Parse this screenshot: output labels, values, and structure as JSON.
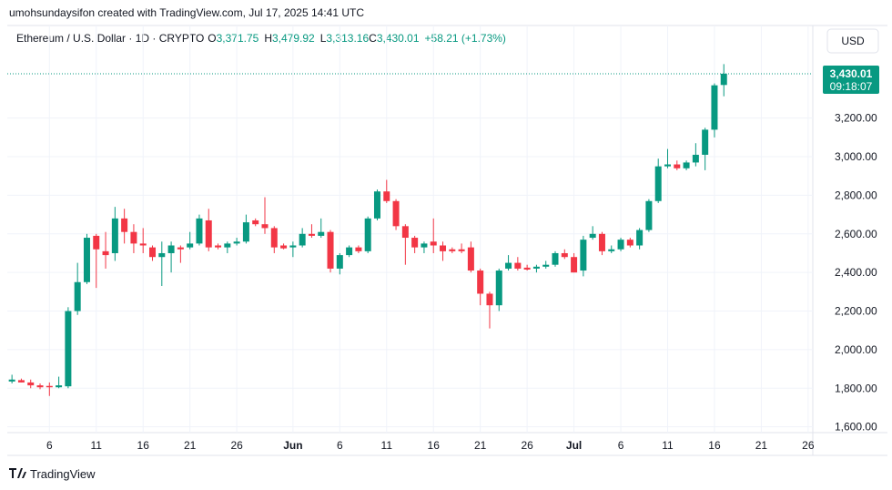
{
  "header": "umohsundaysifon created with TradingView.com, Jul 17, 2025 14:41 UTC",
  "footer": "TradingView",
  "currency_button": "USD",
  "legend": {
    "symbol": "Ethereum / U.S. Dollar · 1D · CRYPTO",
    "open_label": "O",
    "open": "3,371.75",
    "high_label": "H",
    "high": "3,479.92",
    "low_label": "L",
    "low": "3,313.16",
    "close_label": "C",
    "close": "3,430.01",
    "change": "+58.21 (+1.73%)"
  },
  "chart_data": {
    "type": "candlestick",
    "up_color": "#089981",
    "down_color": "#f23645",
    "grid": true,
    "last_price_label": "3,430.01",
    "countdown": "09:18:07",
    "xlim": [
      "2025-05-01T12:00",
      "2025-07-26T12:00"
    ],
    "xticks": [
      {
        "value": "2025-05-06",
        "label": "6"
      },
      {
        "value": "2025-05-11",
        "label": "11"
      },
      {
        "value": "2025-05-16",
        "label": "16"
      },
      {
        "value": "2025-05-21",
        "label": "21"
      },
      {
        "value": "2025-05-26",
        "label": "26"
      },
      {
        "value": "2025-06-01",
        "label": "Jun"
      },
      {
        "value": "2025-06-06",
        "label": "6"
      },
      {
        "value": "2025-06-11",
        "label": "11"
      },
      {
        "value": "2025-06-16",
        "label": "16"
      },
      {
        "value": "2025-06-21",
        "label": "21"
      },
      {
        "value": "2025-06-26",
        "label": "26"
      },
      {
        "value": "2025-07-01",
        "label": "Jul"
      },
      {
        "value": "2025-07-06",
        "label": "6"
      },
      {
        "value": "2025-07-11",
        "label": "11"
      },
      {
        "value": "2025-07-16",
        "label": "16"
      },
      {
        "value": "2025-07-21",
        "label": "21"
      },
      {
        "value": "2025-07-26",
        "label": "26"
      }
    ],
    "ylim": [
      1570,
      3680
    ],
    "yticks": [
      {
        "value": 1600,
        "label": "1,600.00"
      },
      {
        "value": 1800,
        "label": "1,800.00"
      },
      {
        "value": 2000,
        "label": "2,000.00"
      },
      {
        "value": 2200,
        "label": "2,200.00"
      },
      {
        "value": 2400,
        "label": "2,400.00"
      },
      {
        "value": 2600,
        "label": "2,600.00"
      },
      {
        "value": 2800,
        "label": "2,800.00"
      },
      {
        "value": 3000,
        "label": "3,000.00"
      },
      {
        "value": 3200,
        "label": "3,200.00"
      }
    ],
    "x": [
      "2025-05-02",
      "2025-05-03",
      "2025-05-04",
      "2025-05-05",
      "2025-05-06",
      "2025-05-07",
      "2025-05-08",
      "2025-05-09",
      "2025-05-10",
      "2025-05-11",
      "2025-05-12",
      "2025-05-13",
      "2025-05-14",
      "2025-05-15",
      "2025-05-16",
      "2025-05-17",
      "2025-05-18",
      "2025-05-19",
      "2025-05-20",
      "2025-05-21",
      "2025-05-22",
      "2025-05-23",
      "2025-05-24",
      "2025-05-25",
      "2025-05-26",
      "2025-05-27",
      "2025-05-28",
      "2025-05-29",
      "2025-05-30",
      "2025-05-31",
      "2025-06-01",
      "2025-06-02",
      "2025-06-03",
      "2025-06-04",
      "2025-06-05",
      "2025-06-06",
      "2025-06-07",
      "2025-06-08",
      "2025-06-09",
      "2025-06-10",
      "2025-06-11",
      "2025-06-12",
      "2025-06-13",
      "2025-06-14",
      "2025-06-15",
      "2025-06-16",
      "2025-06-17",
      "2025-06-18",
      "2025-06-19",
      "2025-06-20",
      "2025-06-21",
      "2025-06-22",
      "2025-06-23",
      "2025-06-24",
      "2025-06-25",
      "2025-06-26",
      "2025-06-27",
      "2025-06-28",
      "2025-06-29",
      "2025-06-30",
      "2025-07-01",
      "2025-07-02",
      "2025-07-03",
      "2025-07-04",
      "2025-07-05",
      "2025-07-06",
      "2025-07-07",
      "2025-07-08",
      "2025-07-09",
      "2025-07-10",
      "2025-07-11",
      "2025-07-12",
      "2025-07-13",
      "2025-07-14",
      "2025-07-15",
      "2025-07-16",
      "2025-07-17"
    ],
    "open": [
      1835,
      1842,
      1830,
      1815,
      1812,
      1805,
      1810,
      2200,
      2350,
      2590,
      2510,
      2500,
      2680,
      2610,
      2550,
      2530,
      2480,
      2500,
      2530,
      2530,
      2550,
      2670,
      2540,
      2530,
      2550,
      2560,
      2670,
      2650,
      2630,
      2540,
      2530,
      2540,
      2600,
      2590,
      2610,
      2420,
      2490,
      2530,
      2510,
      2680,
      2820,
      2770,
      2640,
      2580,
      2530,
      2560,
      2540,
      2520,
      2520,
      2530,
      2410,
      2290,
      2230,
      2420,
      2450,
      2425,
      2420,
      2430,
      2440,
      2500,
      2480,
      2410,
      2580,
      2600,
      2510,
      2520,
      2570,
      2540,
      2620,
      2770,
      2950,
      2960,
      2940,
      2970,
      3010,
      3140,
      3371.75
    ],
    "high": [
      1870,
      1850,
      1845,
      1825,
      1830,
      1860,
      2220,
      2450,
      2600,
      2600,
      2610,
      2740,
      2730,
      2650,
      2630,
      2540,
      2560,
      2560,
      2540,
      2610,
      2700,
      2730,
      2550,
      2560,
      2580,
      2700,
      2680,
      2790,
      2640,
      2550,
      2560,
      2630,
      2650,
      2680,
      2620,
      2500,
      2540,
      2540,
      2690,
      2830,
      2880,
      2780,
      2650,
      2590,
      2560,
      2680,
      2560,
      2530,
      2550,
      2560,
      2420,
      2300,
      2420,
      2490,
      2480,
      2440,
      2440,
      2460,
      2510,
      2520,
      2500,
      2590,
      2640,
      2610,
      2540,
      2580,
      2580,
      2630,
      2780,
      2990,
      3040,
      2980,
      2980,
      3070,
      3150,
      3380,
      3479.92
    ],
    "low": [
      1825,
      1830,
      1800,
      1795,
      1760,
      1800,
      1800,
      2180,
      2340,
      2320,
      2420,
      2460,
      2550,
      2500,
      2500,
      2460,
      2330,
      2400,
      2450,
      2520,
      2540,
      2510,
      2520,
      2500,
      2540,
      2550,
      2640,
      2600,
      2500,
      2520,
      2480,
      2530,
      2580,
      2580,
      2400,
      2390,
      2480,
      2500,
      2500,
      2670,
      2760,
      2620,
      2440,
      2500,
      2500,
      2500,
      2460,
      2500,
      2500,
      2400,
      2230,
      2110,
      2200,
      2410,
      2410,
      2410,
      2400,
      2420,
      2430,
      2470,
      2400,
      2380,
      2570,
      2490,
      2500,
      2510,
      2530,
      2520,
      2610,
      2760,
      2940,
      2930,
      2930,
      2950,
      2930,
      3100,
      3313.16
    ],
    "close": [
      1845,
      1830,
      1815,
      1805,
      1805,
      1815,
      2200,
      2350,
      2580,
      2520,
      2490,
      2680,
      2610,
      2550,
      2540,
      2480,
      2500,
      2540,
      2520,
      2550,
      2680,
      2530,
      2530,
      2550,
      2560,
      2660,
      2650,
      2630,
      2530,
      2525,
      2540,
      2600,
      2590,
      2610,
      2420,
      2490,
      2530,
      2510,
      2680,
      2820,
      2770,
      2640,
      2580,
      2530,
      2550,
      2540,
      2510,
      2510,
      2510,
      2410,
      2290,
      2230,
      2410,
      2450,
      2420,
      2415,
      2430,
      2440,
      2500,
      2480,
      2400,
      2570,
      2600,
      2510,
      2520,
      2570,
      2540,
      2620,
      2770,
      2950,
      2960,
      2940,
      2970,
      3010,
      3140,
      3370,
      3430.01
    ]
  }
}
